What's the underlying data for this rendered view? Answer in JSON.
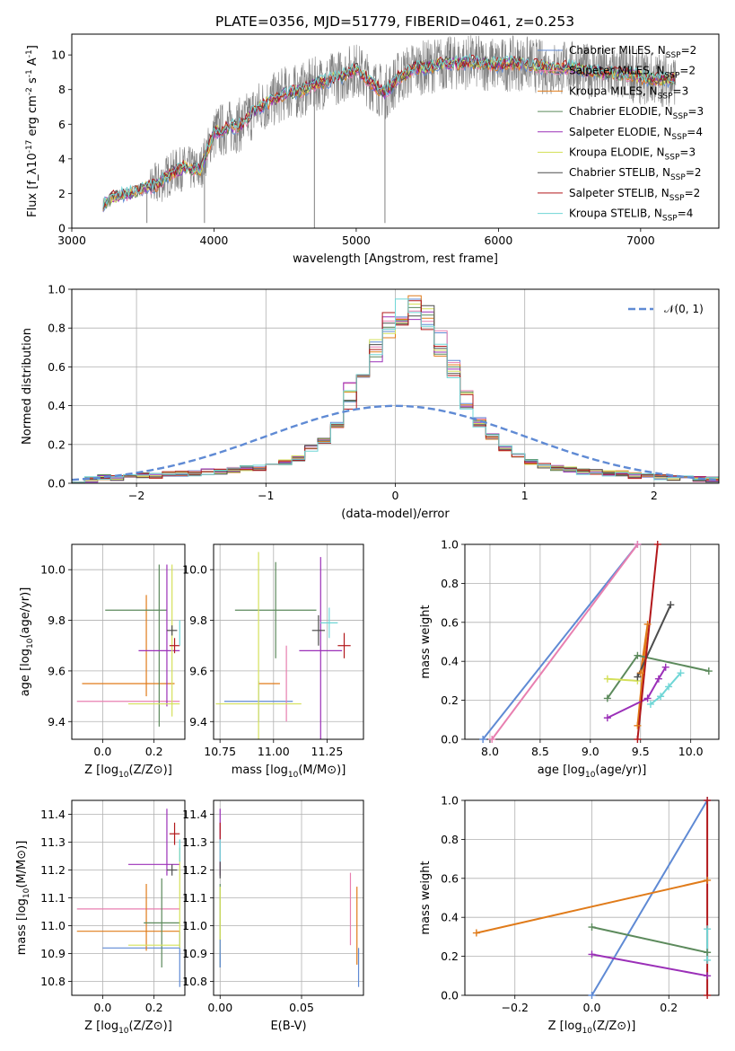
{
  "figure_title": "PLATE=0356, MJD=51779, FIBERID=0461, z=0.253",
  "chart_data": [
    {
      "id": "spectrum",
      "type": "line",
      "title": "PLATE=0356, MJD=51779, FIBERID=0461, z=0.253",
      "xlabel": "wavelength [Angstrom, rest frame]",
      "ylabel": "Flux [f_λ10^{-17} erg cm^{-2} s^{-1} A^{-1}]",
      "xlim": [
        3000,
        7550
      ],
      "ylim": [
        0,
        11.2
      ],
      "xticks": [
        3000,
        4000,
        5000,
        6000,
        7000
      ],
      "yticks": [
        0,
        2,
        4,
        6,
        8,
        10
      ],
      "grid": false,
      "legend_position": "right",
      "data_series": {
        "name": "",
        "color": "#808080",
        "x_range": [
          3220,
          7250
        ]
      },
      "model_curve": {
        "x": [
          3220,
          3300,
          3400,
          3500,
          3600,
          3700,
          3800,
          3900,
          4000,
          4100,
          4200,
          4300,
          4400,
          4500,
          4600,
          4700,
          4800,
          4900,
          5000,
          5100,
          5200,
          5300,
          5400,
          5500,
          5600,
          5700,
          5800,
          5900,
          6000,
          6100,
          6200,
          6300,
          6400,
          6500,
          6600,
          6700,
          6800,
          6900,
          7000,
          7100,
          7250
        ],
        "y": [
          1.4,
          1.8,
          2.0,
          2.3,
          2.5,
          3.2,
          3.5,
          3.3,
          5.5,
          5.8,
          6.0,
          6.9,
          7.3,
          7.8,
          7.9,
          8.3,
          8.5,
          8.8,
          9.2,
          8.4,
          7.8,
          8.7,
          9.2,
          9.3,
          9.5,
          9.5,
          9.6,
          9.5,
          9.4,
          9.5,
          9.5,
          9.3,
          9.2,
          9.3,
          9.1,
          9.0,
          8.9,
          8.9,
          8.7,
          8.6,
          8.6
        ]
      },
      "series": [
        {
          "name": "Chabrier MILES, N_SSP=2",
          "color": "#5f8ad4"
        },
        {
          "name": "Salpeter MILES, N_SSP=2",
          "color": "#e87fb0"
        },
        {
          "name": "Kroupa MILES, N_SSP=3",
          "color": "#e07b1a"
        },
        {
          "name": "Chabrier ELODIE, N_SSP=3",
          "color": "#5c8a5c"
        },
        {
          "name": "Salpeter ELODIE, N_SSP=4",
          "color": "#9b30b8"
        },
        {
          "name": "Kroupa ELODIE, N_SSP=3",
          "color": "#d4e05a"
        },
        {
          "name": "Chabrier STELIB, N_SSP=2",
          "color": "#4d4d4d"
        },
        {
          "name": "Salpeter STELIB, N_SSP=2",
          "color": "#b2181b"
        },
        {
          "name": "Kroupa STELIB, N_SSP=4",
          "color": "#6fd6d6"
        }
      ]
    },
    {
      "id": "residuals",
      "type": "line",
      "xlabel": "(data-model)/error",
      "ylabel": "Normed distribution",
      "xlim": [
        -2.5,
        2.5
      ],
      "ylim": [
        0,
        1.0
      ],
      "xticks": [
        -2,
        -1,
        0,
        1,
        2
      ],
      "yticks": [
        0.0,
        0.2,
        0.4,
        0.6,
        0.8,
        1.0
      ],
      "grid": true,
      "legend_position": "top-right",
      "legend": [
        "𝒩(0, 1)"
      ],
      "reference_curve": {
        "name": "𝒩(0, 1)",
        "mean": 0,
        "sigma": 1,
        "color": "#5f8ad4"
      },
      "histogram_bins": [
        -2.5,
        -2.4,
        -2.3,
        -2.2,
        -2.1,
        -2.0,
        -1.9,
        -1.8,
        -1.7,
        -1.6,
        -1.5,
        -1.4,
        -1.3,
        -1.2,
        -1.1,
        -1.0,
        -0.9,
        -0.8,
        -0.7,
        -0.6,
        -0.5,
        -0.4,
        -0.3,
        -0.2,
        -0.1,
        0.0,
        0.1,
        0.2,
        0.3,
        0.4,
        0.5,
        0.6,
        0.7,
        0.8,
        0.9,
        1.0,
        1.1,
        1.2,
        1.3,
        1.4,
        1.5,
        1.6,
        1.7,
        1.8,
        1.9,
        2.0,
        2.1,
        2.2,
        2.3,
        2.4,
        2.5
      ],
      "histogram_profile": [
        0.02,
        0.02,
        0.03,
        0.03,
        0.03,
        0.04,
        0.04,
        0.05,
        0.05,
        0.05,
        0.06,
        0.06,
        0.07,
        0.08,
        0.08,
        0.1,
        0.11,
        0.13,
        0.18,
        0.22,
        0.3,
        0.45,
        0.58,
        0.68,
        0.82,
        0.88,
        0.9,
        0.85,
        0.72,
        0.6,
        0.45,
        0.32,
        0.24,
        0.18,
        0.14,
        0.11,
        0.09,
        0.08,
        0.07,
        0.06,
        0.06,
        0.05,
        0.05,
        0.04,
        0.04,
        0.03,
        0.03,
        0.03,
        0.02,
        0.02
      ],
      "series_names": [
        "Chabrier MILES",
        "Salpeter MILES",
        "Kroupa MILES",
        "Chabrier ELODIE",
        "Salpeter ELODIE",
        "Kroupa ELODIE",
        "Chabrier STELIB",
        "Salpeter STELIB",
        "Kroupa STELIB"
      ]
    },
    {
      "id": "age_vs_Z",
      "type": "scatter",
      "xlabel": "Z [log10(Z/Z⊙)]",
      "ylabel": "age  [log10(age/yr)]",
      "xlim": [
        -0.12,
        0.32
      ],
      "ylim": [
        9.33,
        10.1
      ],
      "xticks": [
        0.0,
        0.2
      ],
      "yticks": [
        9.4,
        9.6,
        9.8,
        10.0
      ],
      "grid": true,
      "points": [
        {
          "series": "Chabrier MILES",
          "x": 0.3,
          "xerr": 0.0,
          "y": 9.48,
          "yerr": 0.0
        },
        {
          "series": "Salpeter MILES",
          "x": 0.1,
          "xerr": 0.2,
          "y": 9.48,
          "yerr": 0.0
        },
        {
          "series": "Kroupa MILES",
          "x": 0.17,
          "xerr": 0.0,
          "y": 9.7,
          "yerr": 0.2
        },
        {
          "series": "Kroupa MILES",
          "x": 0.1,
          "xerr": 0.18,
          "y": 9.55,
          "yerr": 0.0
        },
        {
          "series": "Chabrier ELODIE",
          "x": 0.13,
          "xerr": 0.12,
          "y": 9.84,
          "yerr": 0.0
        },
        {
          "series": "Chabrier ELODIE",
          "x": 0.22,
          "xerr": 0.0,
          "y": 9.7,
          "yerr": 0.32
        },
        {
          "series": "Salpeter ELODIE",
          "x": 0.25,
          "xerr": 0.0,
          "y": 9.74,
          "yerr": 0.28
        },
        {
          "series": "Salpeter ELODIE",
          "x": 0.22,
          "xerr": 0.08,
          "y": 9.68,
          "yerr": 0.0
        },
        {
          "series": "Kroupa ELODIE",
          "x": 0.27,
          "xerr": 0.0,
          "y": 9.72,
          "yerr": 0.3
        },
        {
          "series": "Kroupa ELODIE",
          "x": 0.2,
          "xerr": 0.1,
          "y": 9.47,
          "yerr": 0.0
        },
        {
          "series": "Chabrier STELIB",
          "x": 0.27,
          "xerr": 0.02,
          "y": 9.76,
          "yerr": 0.02
        },
        {
          "series": "Salpeter STELIB",
          "x": 0.28,
          "xerr": 0.02,
          "y": 9.7,
          "yerr": 0.03
        },
        {
          "series": "Kroupa STELIB",
          "x": 0.3,
          "xerr": 0.0,
          "y": 9.75,
          "yerr": 0.05
        }
      ]
    },
    {
      "id": "age_vs_mass",
      "type": "scatter",
      "xlabel": "mass [log10(M/M⊙)]",
      "ylabel": "",
      "xlim": [
        10.72,
        11.42
      ],
      "ylim": [
        9.33,
        10.1
      ],
      "xticks": [
        10.75,
        11.0,
        11.25
      ],
      "yticks": [
        9.4,
        9.6,
        9.8,
        10.0
      ],
      "grid": true,
      "points": [
        {
          "series": "Chabrier MILES",
          "x": 10.93,
          "xerr": 0.16,
          "y": 9.48,
          "yerr": 0.08
        },
        {
          "series": "Salpeter MILES",
          "x": 11.06,
          "xerr": 0.0,
          "y": 9.55,
          "yerr": 0.15
        },
        {
          "series": "Kroupa MILES",
          "x": 10.98,
          "xerr": 0.05,
          "y": 9.55,
          "yerr": 0.0
        },
        {
          "series": "Chabrier ELODIE",
          "x": 11.01,
          "xerr": 0.19,
          "y": 9.84,
          "yerr": 0.19
        },
        {
          "series": "Salpeter ELODIE",
          "x": 11.22,
          "xerr": 0.1,
          "y": 9.68,
          "yerr": 0.37
        },
        {
          "series": "Kroupa ELODIE",
          "x": 10.93,
          "xerr": 0.2,
          "y": 9.47,
          "yerr": 0.6
        },
        {
          "series": "Chabrier STELIB",
          "x": 11.21,
          "xerr": 0.03,
          "y": 9.76,
          "yerr": 0.06
        },
        {
          "series": "Salpeter STELIB",
          "x": 11.33,
          "xerr": 0.03,
          "y": 9.7,
          "yerr": 0.05
        },
        {
          "series": "Kroupa STELIB",
          "x": 11.26,
          "xerr": 0.04,
          "y": 9.79,
          "yerr": 0.06
        }
      ]
    },
    {
      "id": "mass_weight_vs_age",
      "type": "line",
      "xlabel": "age  [log10(age/yr)]",
      "ylabel": "mass weight",
      "xlim": [
        7.75,
        10.28
      ],
      "ylim": [
        0.0,
        1.0
      ],
      "xticks": [
        8.0,
        8.5,
        9.0,
        9.5,
        10.0
      ],
      "yticks": [
        0.0,
        0.2,
        0.4,
        0.6,
        0.8,
        1.0
      ],
      "grid": true,
      "series": [
        {
          "name": "Chabrier MILES",
          "x": [
            7.93,
            9.47
          ],
          "y": [
            0.0,
            1.0
          ]
        },
        {
          "name": "Salpeter MILES",
          "x": [
            8.02,
            9.47
          ],
          "y": [
            0.0,
            1.0
          ]
        },
        {
          "name": "Kroupa MILES",
          "x": [
            9.47,
            9.57,
            9.5
          ],
          "y": [
            0.07,
            0.59,
            0.34
          ]
        },
        {
          "name": "Chabrier ELODIE",
          "x": [
            9.17,
            9.47,
            10.18
          ],
          "y": [
            0.21,
            0.43,
            0.35
          ]
        },
        {
          "name": "Salpeter ELODIE",
          "x": [
            9.17,
            9.57,
            9.68,
            9.75
          ],
          "y": [
            0.11,
            0.21,
            0.31,
            0.37
          ]
        },
        {
          "name": "Kroupa ELODIE",
          "x": [
            9.17,
            9.47
          ],
          "y": [
            0.31,
            0.3
          ]
        },
        {
          "name": "Chabrier STELIB",
          "x": [
            9.47,
            9.8
          ],
          "y": [
            0.32,
            0.69
          ]
        },
        {
          "name": "Salpeter STELIB",
          "x": [
            9.47,
            9.67
          ],
          "y": [
            0.0,
            1.0
          ]
        },
        {
          "name": "Kroupa STELIB",
          "x": [
            9.6,
            9.7,
            9.78,
            9.9
          ],
          "y": [
            0.18,
            0.22,
            0.27,
            0.34
          ]
        }
      ]
    },
    {
      "id": "mass_vs_Z",
      "type": "scatter",
      "xlabel": "Z [log10(Z/Z⊙)]",
      "ylabel": "mass [log10(M/M⊙)]",
      "xlim": [
        -0.12,
        0.32
      ],
      "ylim": [
        10.75,
        11.45
      ],
      "xticks": [
        0.0,
        0.2
      ],
      "yticks": [
        10.8,
        10.9,
        11.0,
        11.1,
        11.2,
        11.3,
        11.4
      ],
      "grid": true,
      "points": [
        {
          "series": "Chabrier MILES",
          "x": 0.15,
          "xerr": 0.15,
          "y": 10.92,
          "yerr": 0.0
        },
        {
          "series": "Chabrier MILES",
          "x": 0.3,
          "xerr": 0.0,
          "y": 10.88,
          "yerr": 0.1
        },
        {
          "series": "Salpeter MILES",
          "x": 0.1,
          "xerr": 0.2,
          "y": 11.06,
          "yerr": 0.0
        },
        {
          "series": "Kroupa MILES",
          "x": 0.1,
          "xerr": 0.2,
          "y": 10.98,
          "yerr": 0.0
        },
        {
          "series": "Kroupa MILES",
          "x": 0.17,
          "xerr": 0.0,
          "y": 11.03,
          "yerr": 0.12
        },
        {
          "series": "Chabrier ELODIE",
          "x": 0.23,
          "xerr": 0.07,
          "y": 11.01,
          "yerr": 0.16
        },
        {
          "series": "Salpeter ELODIE",
          "x": 0.25,
          "xerr": 0.0,
          "y": 11.3,
          "yerr": 0.12
        },
        {
          "series": "Salpeter ELODIE",
          "x": 0.2,
          "xerr": 0.1,
          "y": 11.22,
          "yerr": 0.0
        },
        {
          "series": "Kroupa ELODIE",
          "x": 0.3,
          "xerr": 0.0,
          "y": 11.1,
          "yerr": 0.18
        },
        {
          "series": "Kroupa ELODIE",
          "x": 0.2,
          "xerr": 0.1,
          "y": 10.93,
          "yerr": 0.0
        },
        {
          "series": "Chabrier STELIB",
          "x": 0.27,
          "xerr": 0.02,
          "y": 11.2,
          "yerr": 0.02
        },
        {
          "series": "Salpeter STELIB",
          "x": 0.28,
          "xerr": 0.02,
          "y": 11.33,
          "yerr": 0.04
        },
        {
          "series": "Kroupa STELIB",
          "x": 0.3,
          "xerr": 0.0,
          "y": 11.27,
          "yerr": 0.04
        }
      ]
    },
    {
      "id": "mass_vs_ebv",
      "type": "scatter",
      "xlabel": "E(B-V)",
      "ylabel": "",
      "xlim": [
        -0.004,
        0.088
      ],
      "ylim": [
        10.75,
        11.45
      ],
      "xticks": [
        0.0,
        0.05
      ],
      "yticks": [
        10.8,
        10.9,
        11.0,
        11.1,
        11.2,
        11.3,
        11.4
      ],
      "grid": true,
      "points": [
        {
          "series": "Chabrier MILES",
          "x": 0.085,
          "y": 10.85,
          "yerr": 0.07
        },
        {
          "series": "Salpeter MILES",
          "x": 0.08,
          "y": 11.06,
          "yerr": 0.13
        },
        {
          "series": "Kroupa MILES",
          "x": 0.084,
          "y": 11.0,
          "yerr": 0.14
        },
        {
          "series": "Chabrier ELODIE",
          "x": 0.0,
          "y": 11.0,
          "yerr": 0.15
        },
        {
          "series": "Salpeter ELODIE",
          "x": 0.0,
          "y": 11.3,
          "yerr": 0.12
        },
        {
          "series": "Kroupa ELODIE",
          "x": 0.0,
          "y": 11.02,
          "yerr": 0.12
        },
        {
          "series": "Chabrier STELIB",
          "x": 0.0,
          "y": 11.2,
          "yerr": 0.03
        },
        {
          "series": "Salpeter STELIB",
          "x": 0.0,
          "y": 11.34,
          "yerr": 0.03
        },
        {
          "series": "Kroupa STELIB",
          "x": 0.0,
          "y": 11.27,
          "yerr": 0.04
        },
        {
          "series": "Chabrier MILES",
          "x": 0.0,
          "y": 10.9,
          "yerr": 0.05
        }
      ]
    },
    {
      "id": "mass_weight_vs_Z",
      "type": "line",
      "xlabel": "Z [log10(Z/Z⊙)]",
      "ylabel": "mass weight",
      "xlim": [
        -0.33,
        0.33
      ],
      "ylim": [
        0.0,
        1.0
      ],
      "xticks": [
        -0.2,
        0.0,
        0.2
      ],
      "yticks": [
        0.0,
        0.2,
        0.4,
        0.6,
        0.8,
        1.0
      ],
      "grid": true,
      "series": [
        {
          "name": "Chabrier MILES",
          "x": [
            0.0,
            0.3
          ],
          "y": [
            0.0,
            1.0
          ]
        },
        {
          "name": "Kroupa MILES",
          "x": [
            -0.3,
            0.3
          ],
          "y": [
            0.32,
            0.59
          ]
        },
        {
          "name": "Chabrier ELODIE",
          "x": [
            0.0,
            0.3
          ],
          "y": [
            0.35,
            0.22
          ]
        },
        {
          "name": "Salpeter ELODIE",
          "x": [
            0.0,
            0.3
          ],
          "y": [
            0.21,
            0.1
          ]
        },
        {
          "name": "Salpeter STELIB",
          "x": [
            0.3,
            0.3
          ],
          "y": [
            0.0,
            1.0
          ]
        },
        {
          "name": "Kroupa STELIB",
          "x": [
            0.3,
            0.3
          ],
          "y": [
            0.18,
            0.34
          ]
        }
      ]
    }
  ]
}
